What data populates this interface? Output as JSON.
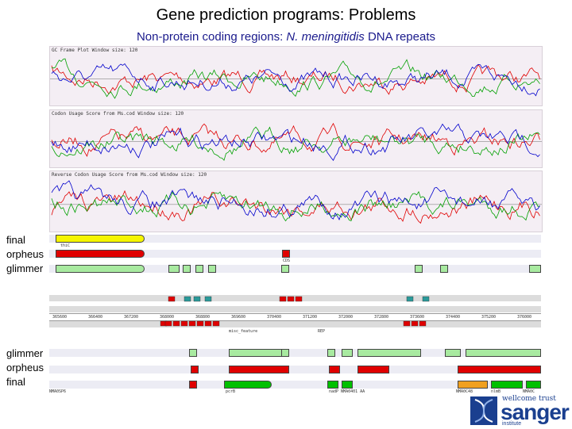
{
  "slide": {
    "title": "Gene prediction programs: Problems",
    "subtitle_pre": "Non-protein coding regions: ",
    "subtitle_species": "N. meningitidis",
    "subtitle_post": " DNA repeats"
  },
  "plots": {
    "gc_frame": "GC Frame Plot  Window size: 120",
    "codon_usage": "Codon Usage Score from Ms.cod  Window size: 120",
    "reverse_codon": "Reverse Codon Usage Score from Ms.cod  Window size: 120"
  },
  "labels_top": {
    "final": "final",
    "orpheus": "orpheus",
    "glimmer": "glimmer"
  },
  "labels_bottom": {
    "glimmer": "glimmer",
    "orpheus": "orpheus",
    "final": "final"
  },
  "tracks_top": {
    "final_gene": "thiC",
    "cds": "CDS"
  },
  "ruler": {
    "coords": [
      "365600",
      "366400",
      "367200",
      "368000",
      "368800",
      "369600",
      "370400",
      "371200",
      "372000",
      "372800",
      "373600",
      "374400",
      "375200",
      "376000"
    ],
    "feature_label": "misc_feature",
    "rep": "REP"
  },
  "tracks_bottom": {
    "nmaosp6": "NMA0SP6",
    "pcrb": "pcrB",
    "nadp": "nadP NMA0401 AA",
    "nmaoc48": "NMA0C48",
    "nlmb": "nlmB",
    "nmaoc": "NMA0C"
  },
  "logo": {
    "small": "wellcome trust",
    "big": "sanger",
    "inst": "institute"
  },
  "colors": {
    "red": "#e00000",
    "green": "#00a000",
    "blue": "#0000cc",
    "yellow": "#f5f500",
    "lightgreen": "#a8eaa0",
    "orange": "#f0a020"
  }
}
